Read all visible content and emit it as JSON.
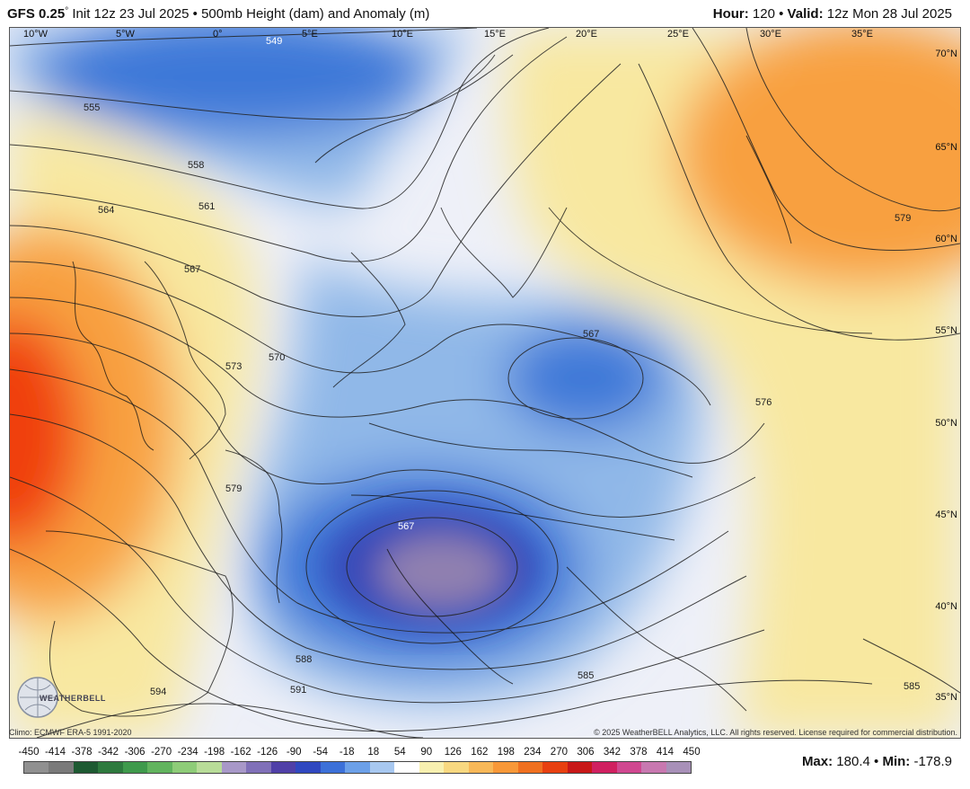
{
  "header": {
    "model": "GFS 0.25",
    "degree_symbol": "°",
    "init": "Init 12z 23 Jul 2025",
    "bullet": "•",
    "product": "500mb Height (dam) and Anomaly (m)",
    "hour_label": "Hour:",
    "hour_value": "120",
    "valid_label": "Valid:",
    "valid_value": "12z Mon 28 Jul 2025"
  },
  "map": {
    "lon_labels": [
      "10°W",
      "5°W",
      "0°",
      "5°E",
      "10°E",
      "15°E",
      "20°E",
      "25°E",
      "30°E",
      "35°E"
    ],
    "lat_labels": [
      "70°N",
      "65°N",
      "60°N",
      "55°N",
      "50°N",
      "45°N",
      "40°N",
      "35°N"
    ],
    "contour_labels": [
      "549",
      "555",
      "558",
      "561",
      "564",
      "567",
      "570",
      "573",
      "579",
      "588",
      "591",
      "594",
      "567",
      "567",
      "585",
      "579",
      "585",
      "576"
    ],
    "anomaly_colors": {
      "strong_positive": "#f04010",
      "positive": "#f8a040",
      "weak_positive": "#f8e8a0",
      "neutral": "#eef0f8",
      "weak_negative": "#90b8e8",
      "negative": "#3d78d8",
      "strong_negative": "#3848b8",
      "extreme_negative": "#9080b0"
    }
  },
  "footer": {
    "climo": "Climo: ECMWF ERA-5 1991-2020",
    "copyright": "© 2025 WeatherBELL Analytics, LLC. All rights reserved. License required for commercial distribution.",
    "logo_text": "WEATHERBELL"
  },
  "colorbar": {
    "labels": [
      "-450",
      "-414",
      "-378",
      "-342",
      "-306",
      "-270",
      "-234",
      "-198",
      "-162",
      "-126",
      "-90",
      "-54",
      "-18",
      "18",
      "54",
      "90",
      "126",
      "162",
      "198",
      "234",
      "270",
      "306",
      "342",
      "378",
      "414",
      "450"
    ],
    "colors": [
      "#909090",
      "#7a7a7a",
      "#1e5a32",
      "#2e7a3e",
      "#3f9a4c",
      "#62b45e",
      "#8ecc78",
      "#b8dc98",
      "#a898c8",
      "#8070b8",
      "#5040a8",
      "#3048c0",
      "#3c70d8",
      "#6ca0e8",
      "#a8c8f0",
      "#ffffff",
      "#f8f0b0",
      "#f8d880",
      "#f8b858",
      "#f89838",
      "#f07020",
      "#e84010",
      "#c81818",
      "#d02060",
      "#d04890",
      "#c878b0",
      "#a890b8"
    ]
  },
  "stats": {
    "max_label": "Max:",
    "max_value": "180.4",
    "min_label": "Min:",
    "min_value": "-178.9",
    "bullet": "•"
  }
}
